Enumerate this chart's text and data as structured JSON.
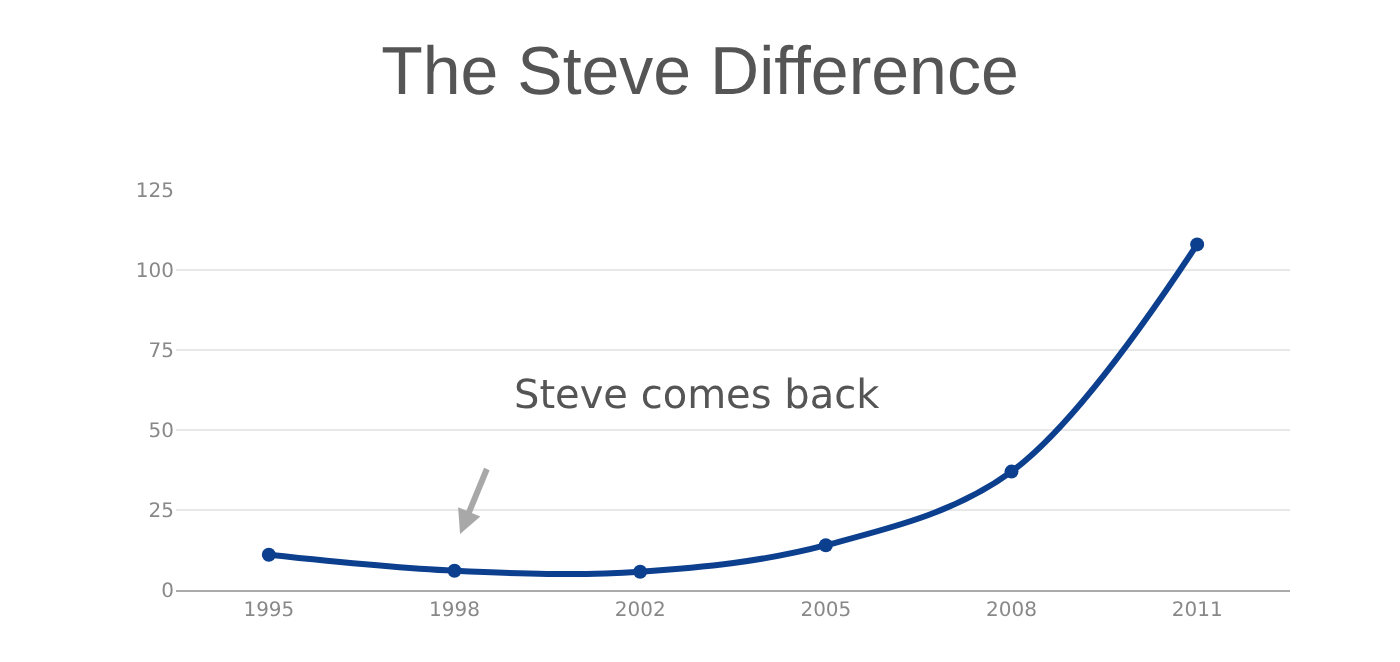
{
  "chart_data": {
    "type": "line",
    "title": "The Steve Difference",
    "categories": [
      "1995",
      "1998",
      "2002",
      "2005",
      "2008",
      "2011"
    ],
    "series": [
      {
        "color": "#0d3f8f",
        "values": [
          11,
          6,
          5.7,
          14,
          37,
          108
        ]
      }
    ],
    "ylim": [
      0,
      125
    ],
    "yticks": [
      0,
      25,
      50,
      75,
      100,
      125
    ],
    "grid": "y",
    "marker": "circle",
    "line_style": "solid",
    "annotations": [
      "Steve comes back"
    ]
  }
}
